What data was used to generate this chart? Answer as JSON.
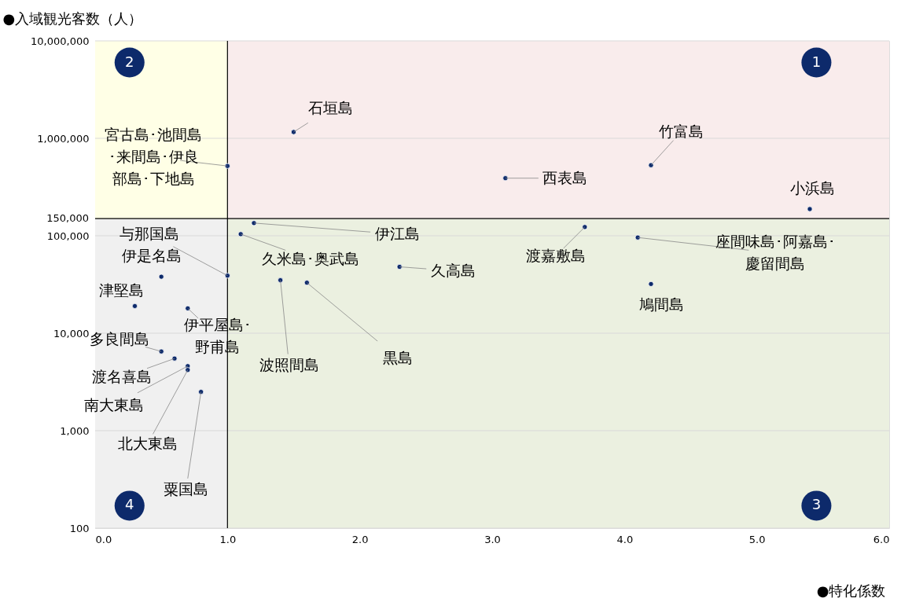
{
  "chart_data": {
    "type": "scatter",
    "xlabel": "●特化係数",
    "ylabel": "●入域観光客数（人）",
    "log": "y",
    "grid": "y",
    "marker": "circle",
    "xlim": [
      0,
      6
    ],
    "xticks": [
      {
        "value": 0,
        "label": "0.0"
      },
      {
        "value": 1,
        "label": "1.0"
      },
      {
        "value": 2,
        "label": "2.0"
      },
      {
        "value": 3,
        "label": "3.0"
      },
      {
        "value": 4,
        "label": "4.0"
      },
      {
        "value": 5,
        "label": "5.0"
      },
      {
        "value": 6,
        "label": "6.0"
      }
    ],
    "ylim": [
      100,
      10000000
    ],
    "yticks": [
      {
        "value": 100,
        "label": "100"
      },
      {
        "value": 1000,
        "label": "1,000"
      },
      {
        "value": 10000,
        "label": "10,000"
      },
      {
        "value": 100000,
        "label": "100,000"
      },
      {
        "value": 1000000,
        "label": "1,000,000"
      },
      {
        "value": 10000000,
        "label": "10,000,000"
      }
    ],
    "series": [
      {
        "color": "#0d2a6b",
        "x": [
          1.5,
          1.0,
          4.2,
          3.1,
          5.4,
          1.2,
          3.7,
          1.0,
          1.1,
          4.1,
          0.5,
          2.3,
          4.2,
          1.4,
          1.6,
          0.3,
          0.7,
          0.5,
          0.6,
          0.7,
          0.7,
          0.8
        ],
        "values": [
          1160000,
          520000,
          530000,
          390000,
          188000,
          135000,
          123000,
          39000,
          104000,
          96000,
          38000,
          48000,
          32000,
          35000,
          33000,
          19000,
          18000,
          6500,
          5500,
          4600,
          4200,
          2500
        ]
      }
    ],
    "ref_lines": [
      {
        "axis": "x",
        "value": 1.0,
        "color": "#000000"
      },
      {
        "axis": "y",
        "value": 150000,
        "color": "#000000",
        "label": "150,000"
      }
    ],
    "bands": [
      {
        "axis": "x",
        "from": 1,
        "to": 6,
        "color": "#f9ecec"
      },
      {
        "axis": "x",
        "from": 0,
        "to": 1,
        "color": "#ffffe6"
      },
      {
        "axis": "x",
        "from": 1,
        "to": 6,
        "color": "#ebf0e0"
      },
      {
        "axis": "x",
        "from": 0,
        "to": 1,
        "color": "#f0f0f0"
      }
    ],
    "annotations": [
      "1",
      "2",
      "3",
      "4",
      {
        "text": "石垣島",
        "x": 1.5,
        "y": 1160000
      },
      {
        "text": "宮古島･池間島･来間島･伊良部島･下地島",
        "x": 1.0,
        "y": 520000
      },
      {
        "text": "竹富島",
        "x": 4.2,
        "y": 530000
      },
      {
        "text": "西表島",
        "x": 3.1,
        "y": 390000
      },
      {
        "text": "小浜島",
        "x": 5.4,
        "y": 188000
      },
      {
        "text": "伊江島",
        "x": 1.2,
        "y": 135000
      },
      {
        "text": "渡嘉敷島",
        "x": 3.7,
        "y": 123000
      },
      {
        "text": "与那国島",
        "x": 1.0,
        "y": 39000
      },
      {
        "text": "久米島･奥武島",
        "x": 1.1,
        "y": 104000
      },
      {
        "text": "座間味島･阿嘉島･慶留間島",
        "x": 4.1,
        "y": 96000
      },
      {
        "text": "伊是名島",
        "x": 0.5,
        "y": 38000
      },
      {
        "text": "久高島",
        "x": 2.3,
        "y": 48000
      },
      {
        "text": "鳩間島",
        "x": 4.2,
        "y": 32000
      },
      {
        "text": "波照間島",
        "x": 1.4,
        "y": 35000
      },
      {
        "text": "黒島",
        "x": 1.6,
        "y": 33000
      },
      {
        "text": "津堅島",
        "x": 0.3,
        "y": 19000
      },
      {
        "text": "伊平屋島･野甫島",
        "x": 0.7,
        "y": 18000
      },
      {
        "text": "多良間島",
        "x": 0.5,
        "y": 6500
      },
      {
        "text": "渡名喜島",
        "x": 0.6,
        "y": 5500
      },
      {
        "text": "南大東島",
        "x": 0.7,
        "y": 4600
      },
      {
        "text": "北大東島",
        "x": 0.7,
        "y": 4200
      },
      {
        "text": "粟国島",
        "x": 0.8,
        "y": 2500
      }
    ]
  }
}
